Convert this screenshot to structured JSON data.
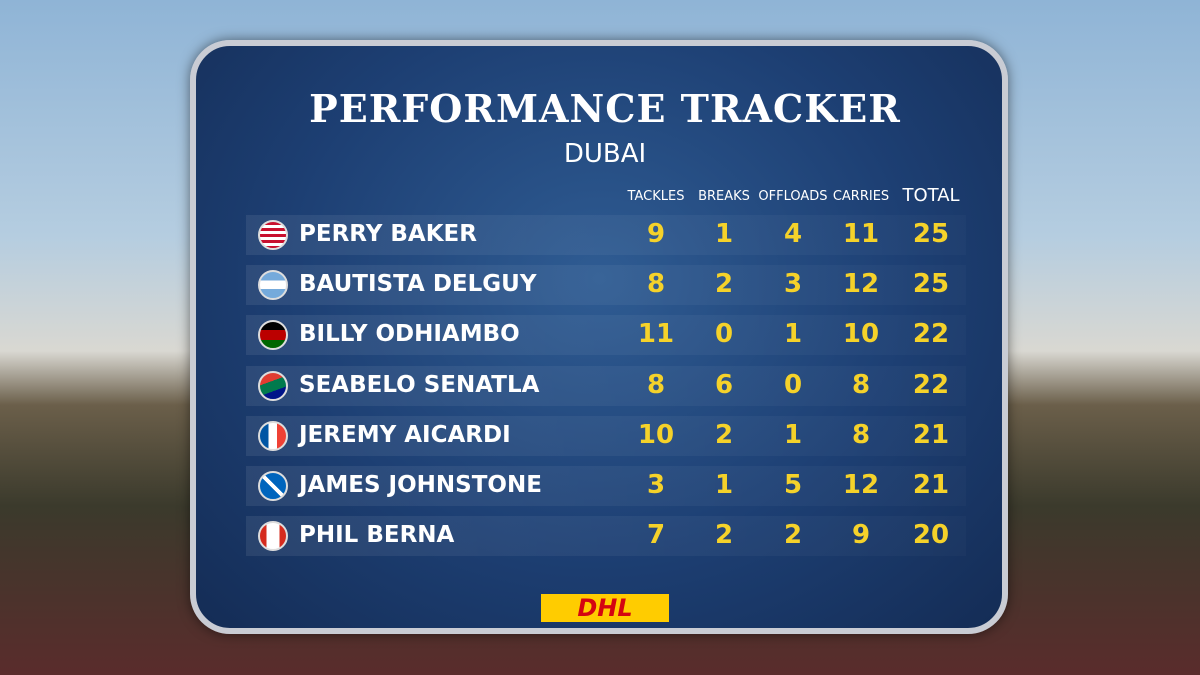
{
  "header": {
    "title": "PERFORMANCE TRACKER",
    "subtitle": "DUBAI"
  },
  "table": {
    "columns": [
      "TACKLES",
      "BREAKS",
      "OFFLOADS",
      "CARRIES",
      "TOTAL"
    ],
    "rows": [
      {
        "name": "PERRY BAKER",
        "values": [
          9,
          1,
          4,
          11,
          25
        ]
      },
      {
        "name": "BAUTISTA DELGUY",
        "values": [
          8,
          2,
          3,
          12,
          25
        ]
      },
      {
        "name": "BILLY ODHIAMBO",
        "values": [
          11,
          0,
          1,
          10,
          22
        ]
      },
      {
        "name": "SEABELO SENATLA",
        "values": [
          8,
          6,
          0,
          8,
          22
        ]
      },
      {
        "name": "JEREMY AICARDI",
        "values": [
          10,
          2,
          1,
          8,
          21
        ]
      },
      {
        "name": "JAMES JOHNSTONE",
        "values": [
          3,
          1,
          5,
          12,
          21
        ]
      },
      {
        "name": "PHIL BERNA",
        "values": [
          7,
          2,
          2,
          9,
          20
        ]
      }
    ]
  },
  "sponsor": {
    "logo": "DHL"
  }
}
